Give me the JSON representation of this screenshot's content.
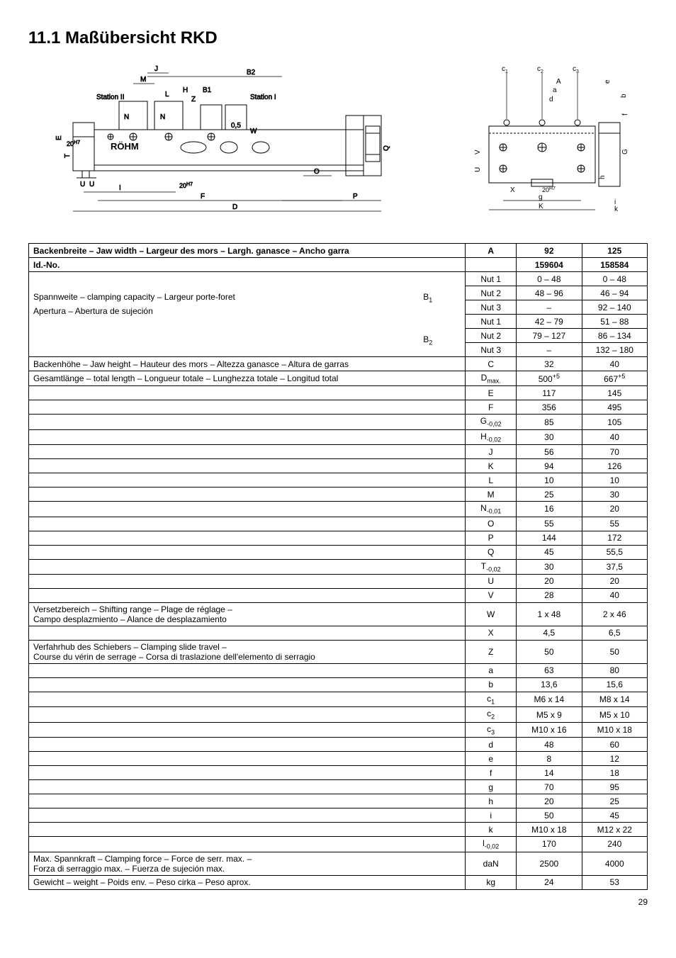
{
  "title": "11.1 Maßübersicht RKD",
  "page_number": "29",
  "table": {
    "header": {
      "label": "Backenbreite – Jaw width – Largeur des mors – Largh. ganasce – Ancho garra",
      "sym": "A",
      "v1": "92",
      "v2": "125"
    },
    "idno": {
      "label": "Id.-No.",
      "v1": "159604",
      "v2": "158584"
    },
    "span_label": "Spannweite – clamping capacity – Largeur porte-foret",
    "apert_label": "Apertura – Abertura de sujeción",
    "b1_label": "B",
    "b2_label": "B",
    "b1_rows": [
      {
        "sym": "Nut 1",
        "v1": "0 – 48",
        "v2": "0 – 48"
      },
      {
        "sym": "Nut 2",
        "v1": "48 – 96",
        "v2": "46 – 94"
      },
      {
        "sym": "Nut 3",
        "v1": "–",
        "v2": "92 – 140"
      }
    ],
    "b2_rows": [
      {
        "sym": "Nut 1",
        "v1": "42 – 79",
        "v2": "51 – 88"
      },
      {
        "sym": "Nut 2",
        "v1": "79 – 127",
        "v2": "86 – 134"
      },
      {
        "sym": "Nut 3",
        "v1": "–",
        "v2": "132 – 180"
      }
    ],
    "rows": [
      {
        "label": "Backenhöhe – Jaw height – Hauteur des mors – Altezza ganasce – Altura de garras",
        "sym": "C",
        "v1": "32",
        "v2": "40"
      },
      {
        "label": "Gesamtlänge – total length – Longueur totale – Lunghezza totale – Longitud total",
        "sym_html": "D<span class='sub'>max.</span>",
        "v1_html": "500<span class='sup'>+5</span>",
        "v2_html": "667<span class='sup'>+5</span>"
      },
      {
        "label": "",
        "sym": "E",
        "v1": "117",
        "v2": "145"
      },
      {
        "label": "",
        "sym": "F",
        "v1": "356",
        "v2": "495"
      },
      {
        "label": "",
        "sym_html": "G<span class='sub'>-0,02</span>",
        "v1": "85",
        "v2": "105"
      },
      {
        "label": "",
        "sym_html": "H<span class='sub'>-0,02</span>",
        "v1": "30",
        "v2": "40"
      },
      {
        "label": "",
        "sym": "J",
        "v1": "56",
        "v2": "70"
      },
      {
        "label": "",
        "sym": "K",
        "v1": "94",
        "v2": "126"
      },
      {
        "label": "",
        "sym": "L",
        "v1": "10",
        "v2": "10"
      },
      {
        "label": "",
        "sym": "M",
        "v1": "25",
        "v2": "30"
      },
      {
        "label": "",
        "sym_html": "N<span class='sub'>-0,01</span>",
        "v1": "16",
        "v2": "20"
      },
      {
        "label": "",
        "sym": "O",
        "v1": "55",
        "v2": "55"
      },
      {
        "label": "",
        "sym": "P",
        "v1": "144",
        "v2": "172"
      },
      {
        "label": "",
        "sym": "Q",
        "v1": "45",
        "v2": "55,5"
      },
      {
        "label": "",
        "sym_html": "T<span class='sub'>-0,02</span>",
        "v1": "30",
        "v2": "37,5"
      },
      {
        "label": "",
        "sym": "U",
        "v1": "20",
        "v2": "20"
      },
      {
        "label": "",
        "sym": "V",
        "v1": "28",
        "v2": "40"
      }
    ],
    "w_row": {
      "label1": "Versetzbereich – Shifting range – Plage de réglage –",
      "label2": "Campo desplazmiento – Alance de desplazamiento",
      "sym": "W",
      "v1": "1 x 48",
      "v2": "2 x 46"
    },
    "x_row": {
      "label": "",
      "sym": "X",
      "v1": "4,5",
      "v2": "6,5"
    },
    "z_row": {
      "label1": "Verfahrhub des Schiebers – Clamping slide travel –",
      "label2": "Course du vérin de serrage  – Corsa di traslazione dell'elemento di serragio",
      "sym": "Z",
      "v1": "50",
      "v2": "50"
    },
    "rows2": [
      {
        "label": "",
        "sym": "a",
        "v1": "63",
        "v2": "80"
      },
      {
        "label": "",
        "sym": "b",
        "v1": "13,6",
        "v2": "15,6"
      },
      {
        "label": "",
        "sym_html": "c<span class='sub'>1</span>",
        "v1": "M6 x 14",
        "v2": "M8 x 14"
      },
      {
        "label": "",
        "sym_html": "c<span class='sub'>2</span>",
        "v1": "M5 x 9",
        "v2": "M5 x 10"
      },
      {
        "label": "",
        "sym_html": "c<span class='sub'>3</span>",
        "v1": "M10 x 16",
        "v2": "M10 x 18"
      },
      {
        "label": "",
        "sym": "d",
        "v1": "48",
        "v2": "60"
      },
      {
        "label": "",
        "sym": "e",
        "v1": "8",
        "v2": "12"
      },
      {
        "label": "",
        "sym": "f",
        "v1": "14",
        "v2": "18"
      },
      {
        "label": "",
        "sym": "g",
        "v1": "70",
        "v2": "95"
      },
      {
        "label": "",
        "sym": "h",
        "v1": "20",
        "v2": "25"
      },
      {
        "label": "",
        "sym": "i",
        "v1": "50",
        "v2": "45"
      },
      {
        "label": "",
        "sym": "k",
        "v1": "M10 x 18",
        "v2": "M12 x 22"
      },
      {
        "label": "",
        "sym_html": "l<span class='sub'>-0,02</span>",
        "v1": "170",
        "v2": "240"
      }
    ],
    "force_row": {
      "label1": "Max. Spannkraft – Clamping force – Force de serr. max. –",
      "label2": "Forza di serraggio max. – Fuerza de sujeción max.",
      "sym": "daN",
      "v1": "2500",
      "v2": "4000"
    },
    "weight_row": {
      "label": "Gewicht – weight – Poids env. – Peso cirka – Peso aprox.",
      "sym": "kg",
      "v1": "24",
      "v2": "53"
    }
  },
  "diagram_labels": {
    "left": {
      "J": "J",
      "M": "M",
      "B2": "B2",
      "L": "L",
      "H": "H",
      "B1": "B1",
      "Z": "Z",
      "StationII": "Station II",
      "StationI": "Station I",
      "N": "N",
      "N2": "N",
      "E": "E",
      "T": "T",
      "20H7a": "20",
      "H7a": "H7",
      "U": "U",
      "U2": "U",
      "I": "I",
      "20H7b": "20",
      "H7b": "H7",
      "F": "F",
      "D": "D",
      "O": "O",
      "P": "P",
      "Q": "Q",
      "W": "W",
      "05": "0,5",
      "rohm": "RÖHM"
    },
    "right": {
      "c1": "c",
      "c1s": "1",
      "c2": "c",
      "c2s": "2",
      "c3": "c",
      "c3s": "3",
      "A": "A",
      "a": "a",
      "d": "d",
      "e": "e",
      "b": "b",
      "f": "f",
      "G": "G",
      "V": "V",
      "U": "U",
      "h": "h",
      "X": "X",
      "20H7": "20",
      "H7": "H7",
      "g": "g",
      "K": "K",
      "k": "k",
      "i": "i"
    }
  }
}
